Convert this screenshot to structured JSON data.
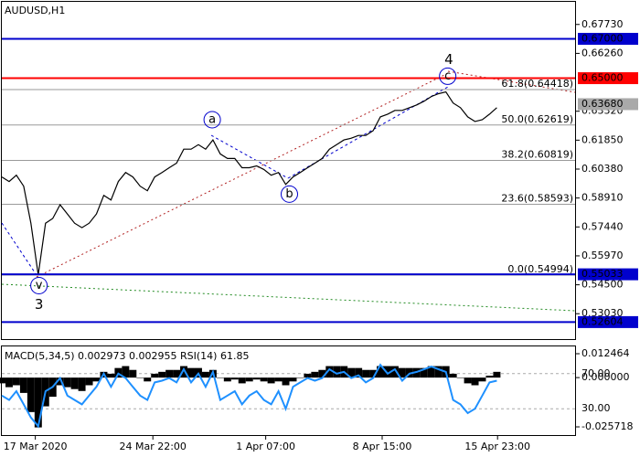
{
  "chart_data": [
    {
      "type": "line",
      "title": "AUDUSD,H1",
      "color": "#000000",
      "x": [
        0,
        1,
        2,
        3,
        4,
        5,
        6,
        7,
        8,
        9,
        10,
        11,
        12,
        13,
        14,
        15,
        16,
        17,
        18,
        19,
        20,
        21,
        22,
        23,
        24,
        25,
        26,
        27,
        28,
        29,
        30,
        31,
        32,
        33,
        34,
        35,
        36,
        37,
        38,
        39,
        40,
        41,
        42,
        43,
        44,
        45,
        46,
        47,
        48,
        49,
        50,
        51,
        52,
        53,
        54,
        55,
        56,
        57,
        58,
        59,
        60,
        61,
        62,
        63,
        64,
        65,
        66,
        67,
        68
      ],
      "values": [
        0.5998,
        0.5975,
        0.6007,
        0.5951,
        0.5763,
        0.55,
        0.5763,
        0.5787,
        0.5857,
        0.581,
        0.5763,
        0.574,
        0.5763,
        0.581,
        0.5904,
        0.5881,
        0.5975,
        0.6021,
        0.5998,
        0.5951,
        0.5928,
        0.5998,
        0.6021,
        0.6045,
        0.6068,
        0.6139,
        0.6139,
        0.6162,
        0.6139,
        0.6186,
        0.6115,
        0.6092,
        0.6092,
        0.6045,
        0.6045,
        0.6054,
        0.6036,
        0.6007,
        0.6021,
        0.596,
        0.5998,
        0.6021,
        0.6045,
        0.6068,
        0.6092,
        0.6139,
        0.6162,
        0.6186,
        0.6195,
        0.6209,
        0.6209,
        0.6233,
        0.6303,
        0.6317,
        0.6336,
        0.6336,
        0.635,
        0.6364,
        0.6383,
        0.6407,
        0.6421,
        0.643,
        0.6374,
        0.635,
        0.6303,
        0.628,
        0.6289,
        0.6317,
        0.635
      ],
      "xlim": [
        0,
        78.75
      ],
      "ylim": [
        0.5174,
        0.6888
      ],
      "yticks": [
        {
          "value": 0.6773,
          "label": "0.67730"
        },
        {
          "value": 0.6626,
          "label": "0.66260"
        },
        {
          "value": 0.6332,
          "label": "0.63320"
        },
        {
          "value": 0.6185,
          "label": "0.61850"
        },
        {
          "value": 0.6038,
          "label": "0.60380"
        },
        {
          "value": 0.5891,
          "label": "0.58910"
        },
        {
          "value": 0.5744,
          "label": "0.57440"
        },
        {
          "value": 0.5597,
          "label": "0.55970"
        },
        {
          "value": 0.545,
          "label": "0.54500"
        },
        {
          "value": 0.5303,
          "label": "0.53030"
        }
      ],
      "xticks": [
        {
          "value": 4.6,
          "label": "17 Mar 2020"
        },
        {
          "value": 20.75,
          "label": "24 Mar 22:00"
        },
        {
          "value": 36.25,
          "label": "1 Apr 07:00"
        },
        {
          "value": 52.25,
          "label": "8 Apr 15:00"
        },
        {
          "value": 68.1,
          "label": "15 Apr 23:00"
        }
      ],
      "fib_levels": [
        {
          "value": 0.64418,
          "label": "61.8(0.64418)"
        },
        {
          "value": 0.62619,
          "label": "50.0(0.62619)"
        },
        {
          "value": 0.60819,
          "label": "38.2(0.60819)"
        },
        {
          "value": 0.58593,
          "label": "23.6(0.58593)"
        },
        {
          "value": 0.54994,
          "label": "0.0(0.54994)"
        }
      ],
      "levels": [
        {
          "value": 0.67,
          "label": "0.67000",
          "color": "#0000cd",
          "line": true
        },
        {
          "value": 0.65,
          "label": "0.65000",
          "color": "#ff0000",
          "line": true
        },
        {
          "value": 0.6368,
          "label": "0.63680",
          "color": "#a9a9a9",
          "line": false
        },
        {
          "value": 0.55033,
          "label": "0.55033",
          "color": "#0000cd",
          "line": true
        },
        {
          "value": 0.52604,
          "label": "0.52604",
          "color": "#0000cd",
          "line": true
        }
      ],
      "waves": [
        {
          "label": "a",
          "x": 28.9,
          "y": 0.6289,
          "color": "#0000cd",
          "circled": true
        },
        {
          "label": "b",
          "x": 39.5,
          "y": 0.5911,
          "color": "#0000cd",
          "circled": true
        },
        {
          "label": "c",
          "x": 61.25,
          "y": 0.651,
          "color": "#0000cd",
          "circled": true
        },
        {
          "label": "v",
          "x": 5.1,
          "y": 0.5446,
          "color": "#0000cd",
          "circled": true
        },
        {
          "label": "4",
          "x": 61.4,
          "y": 0.6593,
          "color": "#b22222",
          "circled": false
        },
        {
          "label": "3",
          "x": 5.1,
          "y": 0.5349,
          "color": "#b22222",
          "circled": false
        }
      ]
    },
    {
      "type": "macd",
      "title": "MACD(5,34,5) 0.002973 0.002955 RSI(14) 61.85",
      "xlim": [
        0,
        78.75
      ],
      "ylim": [
        -0.03,
        0.0158
      ],
      "yticks": [
        {
          "value": 0.012464,
          "label": "0.012464"
        },
        {
          "value": 0,
          "label": "0.000000"
        },
        {
          "value": -0.025718,
          "label": "-0.025718"
        }
      ],
      "y2lim": [
        0,
        100
      ],
      "y2ticks": [
        {
          "value": 70,
          "label": "70.00"
        },
        {
          "value": 30,
          "label": "30.00"
        }
      ],
      "series": [
        {
          "color": "#000000",
          "values": [
            -0.003,
            -0.005,
            -0.004,
            -0.008,
            -0.018,
            -0.026,
            -0.015,
            -0.01,
            -0.004,
            -0.005,
            -0.006,
            -0.007,
            -0.004,
            -0.002,
            0.003,
            0.002,
            0.005,
            0.006,
            0.004,
            0.0,
            -0.002,
            0.002,
            0.003,
            0.004,
            0.004,
            0.006,
            0.005,
            0.005,
            0.003,
            0.004,
            0.0,
            -0.002,
            -0.001,
            -0.003,
            -0.002,
            -0.001,
            -0.002,
            -0.003,
            -0.002,
            -0.004,
            -0.002,
            0.0,
            0.002,
            0.003,
            0.004,
            0.006,
            0.006,
            0.006,
            0.005,
            0.005,
            0.004,
            0.004,
            0.006,
            0.006,
            0.006,
            0.005,
            0.005,
            0.005,
            0.005,
            0.006,
            0.006,
            0.006,
            0.002,
            0.0,
            -0.003,
            -0.004,
            -0.002,
            0.001,
            0.003
          ]
        },
        {
          "color": "#1e90ff",
          "axis": "y2",
          "values": [
            45,
            40,
            50,
            35,
            20,
            10,
            50,
            55,
            65,
            45,
            40,
            35,
            45,
            55,
            70,
            55,
            70,
            65,
            55,
            45,
            40,
            60,
            62,
            65,
            60,
            75,
            60,
            70,
            55,
            72,
            40,
            45,
            50,
            35,
            45,
            50,
            40,
            35,
            50,
            30,
            55,
            60,
            65,
            62,
            65,
            75,
            70,
            72,
            65,
            68,
            60,
            65,
            80,
            70,
            75,
            62,
            70,
            72,
            75,
            78,
            75,
            72,
            40,
            35,
            25,
            30,
            45,
            60,
            62
          ]
        }
      ]
    }
  ]
}
